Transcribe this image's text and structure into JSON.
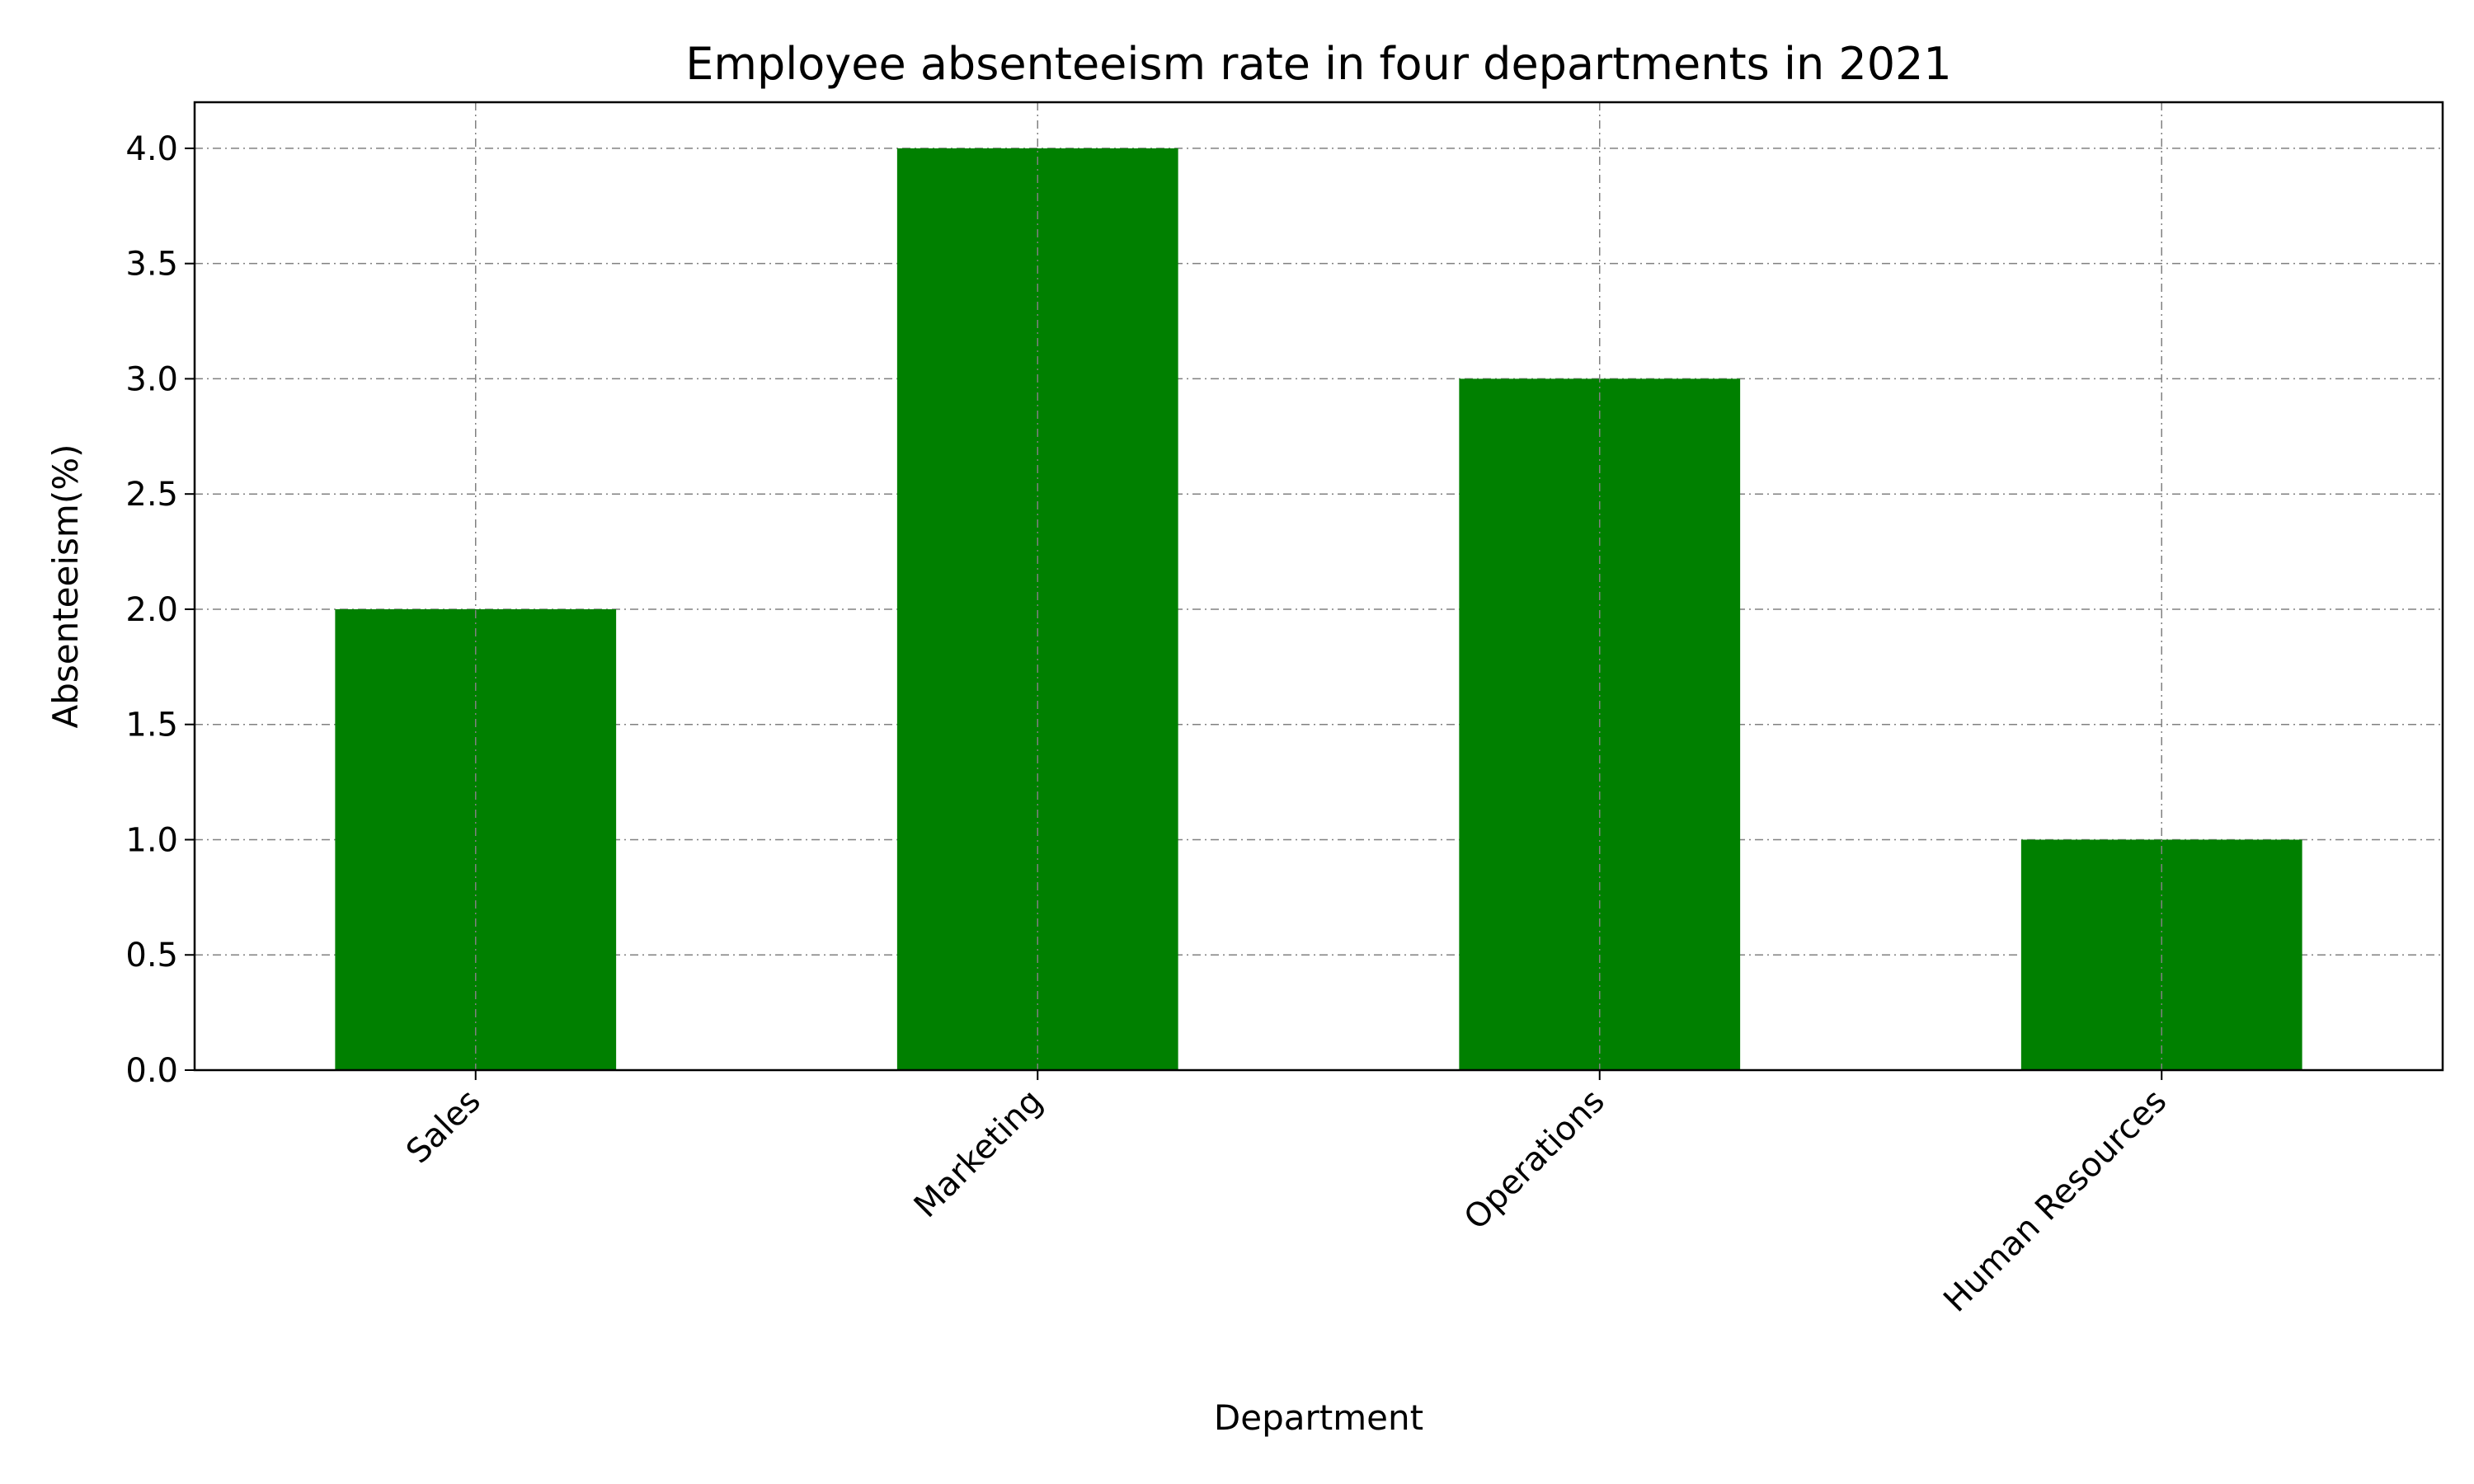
{
  "chart_data": {
    "type": "bar",
    "title": "Employee absenteeism rate in four departments in 2021",
    "xlabel": "Department",
    "ylabel": "Absenteeism(%)",
    "categories": [
      "Sales",
      "Marketing",
      "Operations",
      "Human Resources"
    ],
    "values": [
      2.0,
      4.0,
      3.0,
      1.0
    ],
    "ylim": [
      0,
      4.2
    ],
    "yticks": [
      "0.0",
      "0.5",
      "1.0",
      "1.5",
      "2.0",
      "2.5",
      "3.0",
      "3.5",
      "4.0"
    ],
    "grid": true,
    "legend": "none",
    "bar_color": "#008000",
    "grid_color": "#808080"
  }
}
